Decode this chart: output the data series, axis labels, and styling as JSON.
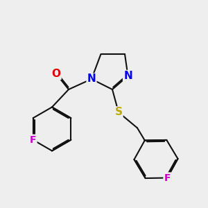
{
  "bg_color": "#eeeeee",
  "bond_color": "#111111",
  "bond_width": 1.5,
  "dbo": 0.06,
  "atom_colors": {
    "O": "#dd0000",
    "N": "#0000ee",
    "S": "#bbaa00",
    "F": "#cc00cc"
  },
  "fontsizes": {
    "O": 11,
    "N": 11,
    "S": 11,
    "F": 10
  },
  "xlim": [
    0.0,
    10.0
  ],
  "ylim": [
    0.5,
    10.5
  ]
}
